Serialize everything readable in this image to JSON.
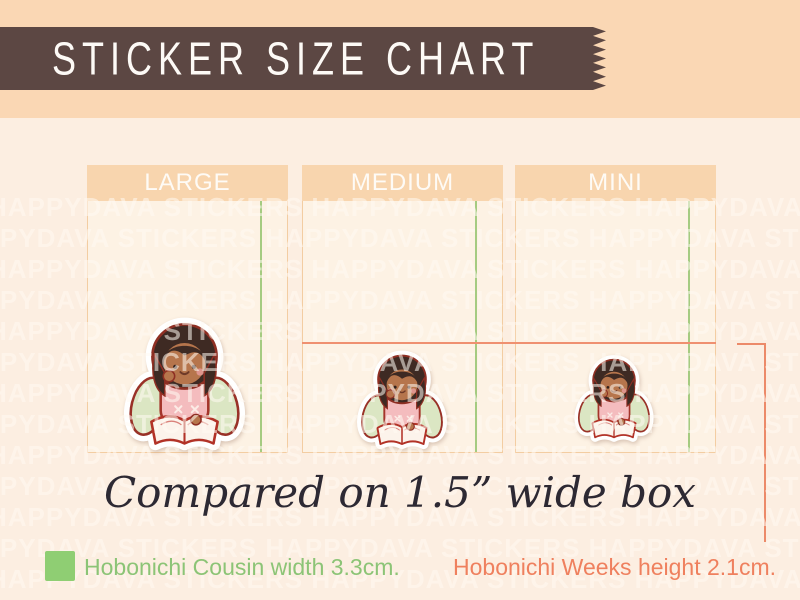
{
  "banner": {
    "title": "STICKER SIZE CHART"
  },
  "watermark": {
    "text": "HAPPYDAVA STICKERS"
  },
  "boxes": [
    {
      "label": "LARGE"
    },
    {
      "label": "MEDIUM"
    },
    {
      "label": "MINI"
    }
  ],
  "caption": "Compared on 1.5” wide box",
  "legend": {
    "cousin_label": "Hobonichi Cousin width 3.3cm.",
    "weeks_label": "Hobonichi Weeks height 2.1cm."
  },
  "colors": {
    "ribbon_brown": "#5C4743",
    "top_strip_peach": "#FAD7B4",
    "background": "#FCEEE1",
    "box_header": "#F8D5AE",
    "box_body": "#FDF2E4",
    "cousin_green": "#8FCE73",
    "weeks_orange": "#EF805E",
    "cousin_guide_line": "#A5CB81",
    "weeks_guide_line": "#EF9070"
  }
}
